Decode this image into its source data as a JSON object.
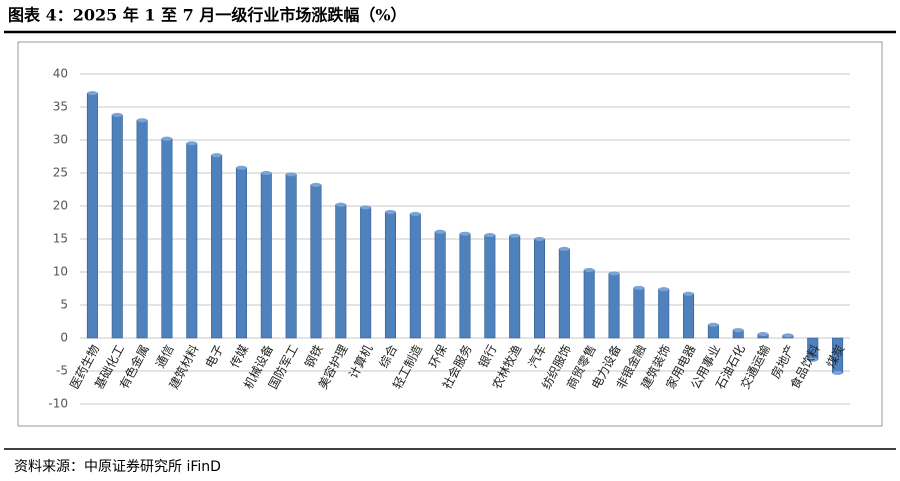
{
  "chart_data": {
    "type": "bar",
    "title": "图表 4：2025 年 1 至 7 月一级行业市场涨跌幅（%）",
    "source": "资料来源：中原证券研究所   iFinD",
    "categories": [
      "医药生物",
      "基础化工",
      "有色金属",
      "通信",
      "建筑材料",
      "电子",
      "传媒",
      "机械设备",
      "国防军工",
      "钢铁",
      "美容护理",
      "计算机",
      "综合",
      "轻工制造",
      "环保",
      "社会服务",
      "银行",
      "农林牧渔",
      "汽车",
      "纺织服饰",
      "商贸零售",
      "电力设备",
      "非银金融",
      "建筑装饰",
      "家用电器",
      "公用事业",
      "石油石化",
      "交通运输",
      "房地产",
      "食品饮料",
      "煤炭"
    ],
    "values": [
      37.1,
      33.8,
      33.0,
      30.2,
      29.5,
      27.7,
      25.8,
      25.0,
      24.8,
      23.2,
      20.2,
      19.8,
      19.1,
      18.8,
      16.1,
      15.8,
      15.6,
      15.5,
      15.0,
      13.5,
      10.3,
      9.8,
      7.6,
      7.4,
      6.7,
      2.0,
      1.2,
      0.6,
      0.4,
      -3.3,
      -5.3
    ],
    "color": "#4f81bd",
    "ylim": [
      -10,
      40
    ],
    "yticks": [
      -10,
      -5,
      0,
      5,
      10,
      15,
      20,
      25,
      30,
      35,
      40
    ],
    "grid": true
  }
}
